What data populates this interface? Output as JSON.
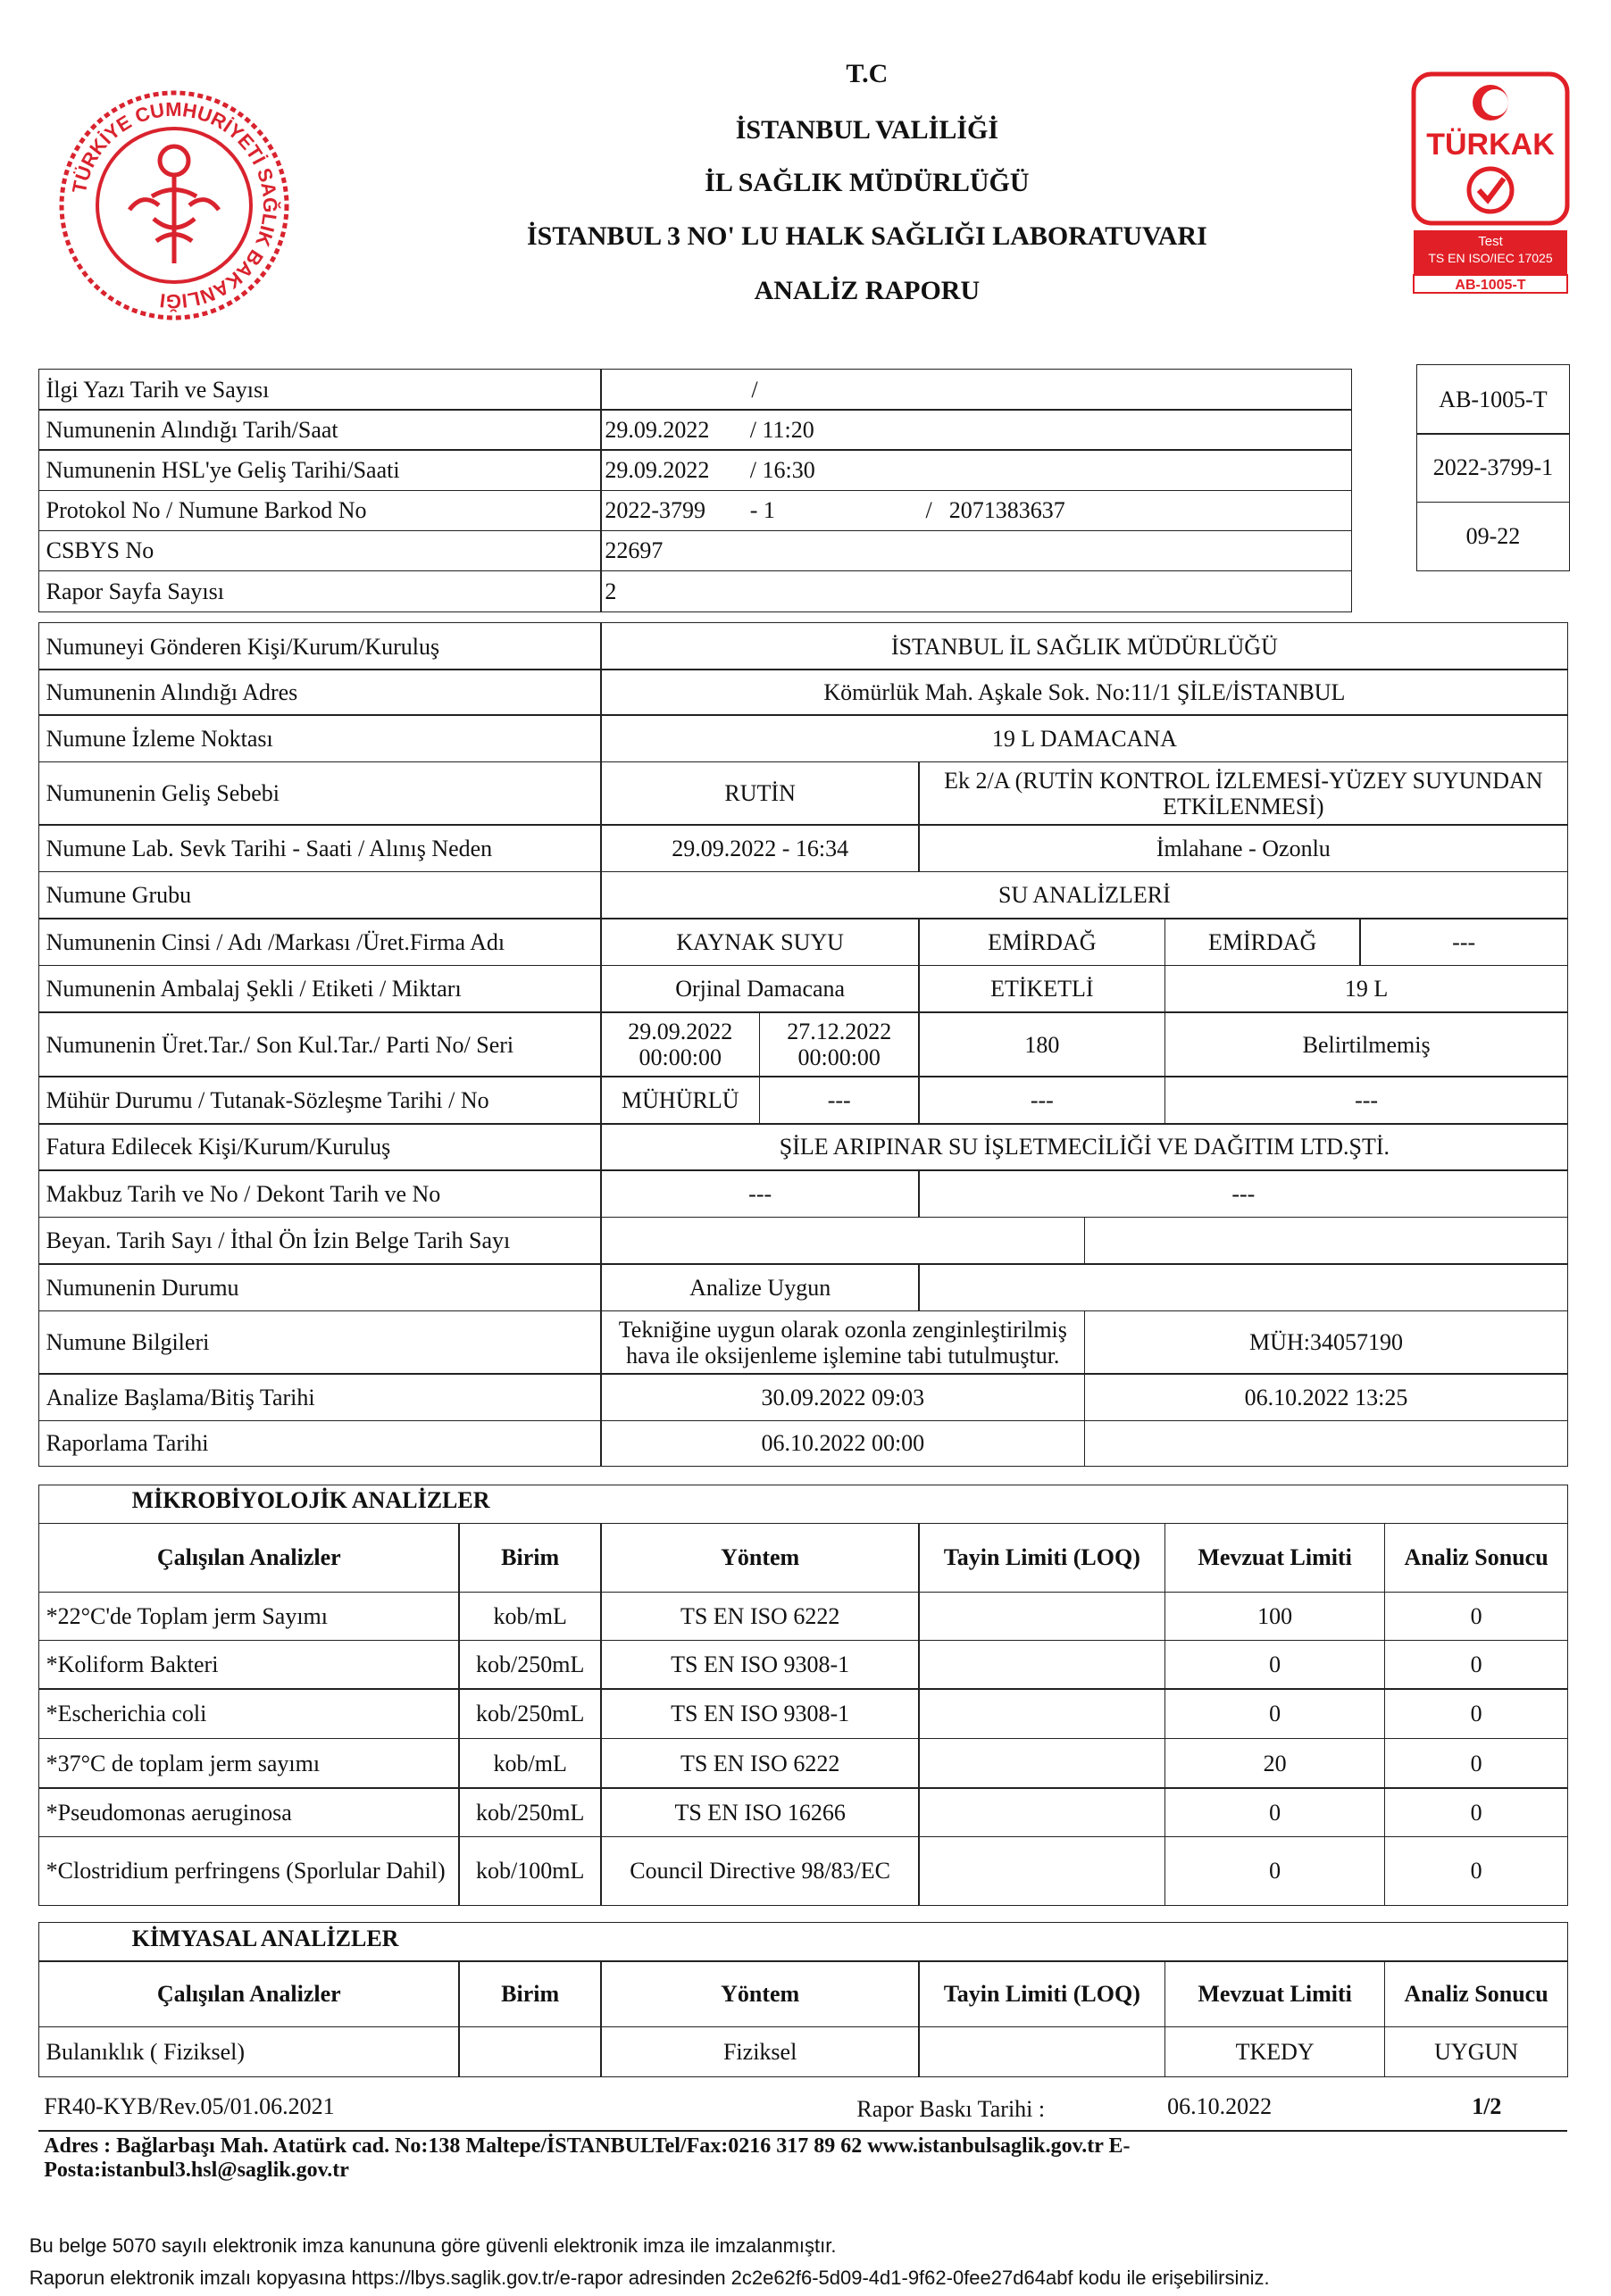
{
  "header": {
    "tc": "T.C",
    "governorship": "İSTANBUL VALİLİĞİ",
    "directorate": "İL SAĞLIK MÜDÜRLÜĞÜ",
    "laboratory": "İSTANBUL 3 NO' LU HALK SAĞLIĞI LABORATUVARI",
    "report_title": "ANALİZ RAPORU"
  },
  "seal": {
    "text": "TÜRKİYE CUMHURİYETİ SAĞLIK BAKANLIĞI"
  },
  "accreditation": {
    "brand": "TÜRKAK",
    "test": "Test",
    "standard": "TS EN ISO/IEC 17025",
    "code": "AB-1005-T"
  },
  "side_box": [
    "AB-1005-T",
    "2022-3799-1",
    "09-22"
  ],
  "info": {
    "rows": [
      {
        "label": "İlgi Yazı Tarih ve Sayısı",
        "parts": [
          "/"
        ]
      },
      {
        "label": "Numunenin Alındığı Tarih/Saat",
        "parts": [
          "29.09.2022",
          "/ 11:20"
        ]
      },
      {
        "label": "Numunenin HSL'ye Geliş Tarihi/Saati",
        "parts": [
          "29.09.2022",
          "/ 16:30"
        ]
      },
      {
        "label": "Protokol No / Numune Barkod No",
        "parts": [
          "2022-3799",
          "- 1",
          "/",
          "2071383637"
        ]
      },
      {
        "label": "CSBYS No",
        "parts": [
          "22697"
        ]
      },
      {
        "label": "Rapor Sayfa Sayısı",
        "parts": [
          "2"
        ]
      }
    ]
  },
  "details": {
    "rows": [
      {
        "label": "Numuneyi Gönderen Kişi/Kurum/Kuruluş",
        "cells": [
          "İSTANBUL İL SAĞLIK MÜDÜRLÜĞÜ"
        ]
      },
      {
        "label": "Numunenin Alındığı Adres",
        "cells": [
          "Kömürlük Mah. Aşkale Sok. No:11/1  ŞİLE/İSTANBUL"
        ]
      },
      {
        "label": "Numune İzleme Noktası",
        "cells": [
          "19 L DAMACANA"
        ]
      },
      {
        "label": "Numunenin Geliş Sebebi",
        "cells": [
          "RUTİN",
          "Ek 2/A (RUTİN KONTROL İZLEMESİ-YÜZEY SUYUNDAN ETKİLENMESİ)"
        ]
      },
      {
        "label": "Numune Lab. Sevk  Tarihi - Saati / Alınış Neden",
        "cells": [
          "29.09.2022  - 16:34",
          "İmlahane - Ozonlu"
        ]
      },
      {
        "label": "Numune Grubu",
        "cells": [
          "SU ANALİZLERİ"
        ]
      },
      {
        "label": "Numunenin Cinsi / Adı /Markası /Üret.Firma Adı",
        "cells": [
          "KAYNAK SUYU",
          "EMİRDAĞ",
          "EMİRDAĞ",
          "---"
        ]
      },
      {
        "label": "Numunenin Ambalaj Şekli / Etiketi / Miktarı",
        "cells": [
          "Orjinal Damacana",
          "ETİKETLİ",
          "19 L"
        ]
      },
      {
        "label": "Numunenin Üret.Tar./ Son Kul.Tar./ Parti No/ Seri",
        "cells": [
          "29.09.2022 00:00:00",
          "27.12.2022 00:00:00",
          "180",
          "Belirtilmemiş"
        ]
      },
      {
        "label": "Mühür Durumu / Tutanak-Sözleşme Tarihi / No",
        "cells": [
          "MÜHÜRLÜ",
          "---",
          "---",
          "---"
        ]
      },
      {
        "label": "Fatura Edilecek Kişi/Kurum/Kuruluş",
        "cells": [
          "ŞİLE ARIPINAR SU İŞLETMECİLİĞİ VE DAĞITIM LTD.ŞTİ."
        ]
      },
      {
        "label": "Makbuz Tarih ve No /  Dekont Tarih ve No",
        "cells": [
          "---",
          "---"
        ]
      },
      {
        "label": "Beyan. Tarih Sayı / İthal Ön İzin Belge Tarih Sayı",
        "cells": []
      },
      {
        "label": "Numunenin Durumu",
        "cells": [
          "Analize Uygun"
        ]
      },
      {
        "label": "Numune Bilgileri",
        "cells": [
          "Tekniğine uygun olarak ozonla zenginleştirilmiş hava ile oksijenleme işlemine tabi tutulmuştur.",
          "MÜH:34057190"
        ]
      },
      {
        "label": "Analize Başlama/Bitiş Tarihi",
        "cells": [
          "30.09.2022 09:03",
          "06.10.2022 13:25"
        ]
      },
      {
        "label": "Raporlama Tarihi",
        "cells": [
          "06.10.2022 00:00"
        ]
      }
    ]
  },
  "microbiology": {
    "title": "MİKROBİYOLOJİK ANALİZLER",
    "headers": [
      "Çalışılan Analizler",
      "Birim",
      "Yöntem",
      "Tayin Limiti (LOQ)",
      "Mevzuat Limiti",
      "Analiz Sonucu"
    ],
    "rows": [
      {
        "analysis": "*22°C'de Toplam jerm Sayımı",
        "unit": "kob/mL",
        "method": "TS EN ISO 6222",
        "limit": "100",
        "result": "0"
      },
      {
        "analysis": "*Koliform Bakteri",
        "unit": "kob/250mL",
        "method": "TS EN ISO 9308-1",
        "limit": "0",
        "result": "0"
      },
      {
        "analysis": "*Escherichia coli",
        "unit": "kob/250mL",
        "method": "TS EN ISO 9308-1",
        "limit": "0",
        "result": "0"
      },
      {
        "analysis": "*37°C de toplam jerm sayımı",
        "unit": "kob/mL",
        "method": "TS EN ISO 6222",
        "limit": "20",
        "result": "0"
      },
      {
        "analysis": "*Pseudomonas aeruginosa",
        "unit": "kob/250mL",
        "method": "TS EN ISO 16266",
        "limit": "0",
        "result": "0"
      },
      {
        "analysis": "*Clostridium perfringens (Sporlular Dahil)",
        "unit": "kob/100mL",
        "method": "Council Directive 98/83/EC",
        "limit": "0",
        "result": "0"
      }
    ]
  },
  "chemistry": {
    "title": "KİMYASAL ANALİZLER",
    "headers": [
      "Çalışılan Analizler",
      "Birim",
      "Yöntem",
      "Tayin Limiti (LOQ)",
      "Mevzuat Limiti",
      "Analiz Sonucu"
    ],
    "rows": [
      {
        "analysis": "Bulanıklık ( Fiziksel)",
        "method": "Fiziksel",
        "limit": "TKEDY",
        "result": "UYGUN"
      }
    ]
  },
  "footer": {
    "form_code": "FR40-KYB/Rev.05/01.06.2021",
    "print_date_label": "Rapor Baskı Tarihi :",
    "print_date": "06.10.2022",
    "page": "1/2",
    "address": "Adres : Bağlarbaşı Mah. Atatürk cad. No:138 Maltepe/İSTANBULTel/Fax:0216 317 89 62 www.istanbulsaglik.gov.tr E-Posta:istanbul3.hsl@saglik.gov.tr"
  },
  "signature_notes": [
    "Bu belge 5070 sayılı elektronik imza kanununa göre güvenli elektronik imza ile imzalanmıştır.",
    "Raporun elektronik imzalı kopyasına https://lbys.saglik.gov.tr/e-rapor adresinden 2c2e62f6-5d09-4d1-9f62-0fee27d64abf kodu ile erişebilirsiniz."
  ]
}
